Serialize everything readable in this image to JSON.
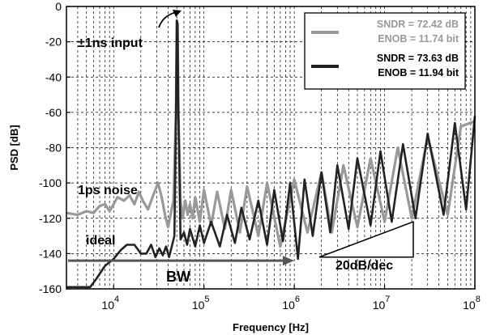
{
  "chart_data": {
    "type": "line",
    "xlabel": "Frequency [Hz]",
    "ylabel": "PSD [dB]",
    "xscale": "log",
    "xlim": [
      3000,
      100000000
    ],
    "ylim": [
      -160,
      0
    ],
    "grid": true,
    "legend_position": "top-right",
    "x_ticks": [
      {
        "value": 10000,
        "base": "10",
        "exp": "4"
      },
      {
        "value": 100000,
        "base": "10",
        "exp": "5"
      },
      {
        "value": 1000000,
        "base": "10",
        "exp": "6"
      },
      {
        "value": 10000000,
        "base": "10",
        "exp": "7"
      },
      {
        "value": 100000000,
        "base": "10",
        "exp": "8"
      }
    ],
    "y_ticks": [
      "0",
      "-20",
      "-40",
      "-60",
      "-80",
      "-100",
      "-120",
      "-140",
      "-160"
    ],
    "series": [
      {
        "name": "SNDR = 72.42 dB ENOB = 11.74 bit",
        "color": "#999999",
        "legend_lines": [
          "SNDR = 72.42 dB",
          "ENOB = 11.74 bit"
        ],
        "points": [
          [
            3000,
            -117
          ],
          [
            4000,
            -118
          ],
          [
            5000,
            -116
          ],
          [
            6000,
            -117
          ],
          [
            7000,
            -113
          ],
          [
            8000,
            -112
          ],
          [
            9000,
            -116
          ],
          [
            10000,
            -112
          ],
          [
            11000,
            -108
          ],
          [
            13000,
            -110
          ],
          [
            15000,
            -107
          ],
          [
            17000,
            -112
          ],
          [
            19000,
            -105
          ],
          [
            21000,
            -110
          ],
          [
            24000,
            -115
          ],
          [
            27000,
            -108
          ],
          [
            31000,
            -100
          ],
          [
            34000,
            -108
          ],
          [
            37000,
            -118
          ],
          [
            40000,
            -125
          ],
          [
            43000,
            -117
          ],
          [
            46000,
            -110
          ],
          [
            49000,
            -60
          ],
          [
            50000,
            -8
          ],
          [
            51000,
            -10
          ],
          [
            52000,
            -60
          ],
          [
            55000,
            -110
          ],
          [
            58000,
            -120
          ],
          [
            62000,
            -110
          ],
          [
            66000,
            -118
          ],
          [
            70000,
            -112
          ],
          [
            75000,
            -120
          ],
          [
            80000,
            -108
          ],
          [
            90000,
            -122
          ],
          [
            100000,
            -104
          ],
          [
            120000,
            -124
          ],
          [
            140000,
            -105
          ],
          [
            170000,
            -126
          ],
          [
            200000,
            -104
          ],
          [
            250000,
            -128
          ],
          [
            300000,
            -102
          ],
          [
            400000,
            -130
          ],
          [
            500000,
            -100
          ],
          [
            700000,
            -136
          ],
          [
            1000000,
            -98
          ],
          [
            1400000,
            -128
          ],
          [
            2000000,
            -94
          ],
          [
            2600000,
            -128
          ],
          [
            3500000,
            -90
          ],
          [
            5000000,
            -125
          ],
          [
            7000000,
            -86
          ],
          [
            10000000,
            -122
          ],
          [
            14000000,
            -80
          ],
          [
            20000000,
            -120
          ],
          [
            30000000,
            -74
          ],
          [
            50000000,
            -118
          ],
          [
            70000000,
            -68
          ],
          [
            100000000,
            -65
          ]
        ]
      },
      {
        "name": "SNDR = 73.63 dB ENOB = 11.94 bit",
        "color": "#222222",
        "legend_lines": [
          "SNDR = 73.63 dB",
          "ENOB = 11.94 bit"
        ],
        "points": [
          [
            3000,
            -159
          ],
          [
            5500,
            -159
          ],
          [
            6500,
            -154
          ],
          [
            8000,
            -147
          ],
          [
            10000,
            -143
          ],
          [
            12000,
            -138
          ],
          [
            14000,
            -135
          ],
          [
            17000,
            -135
          ],
          [
            20000,
            -140
          ],
          [
            23000,
            -140
          ],
          [
            26000,
            -135
          ],
          [
            29000,
            -142
          ],
          [
            32000,
            -137
          ],
          [
            35000,
            -141
          ],
          [
            38000,
            -136
          ],
          [
            41000,
            -142
          ],
          [
            44000,
            -136
          ],
          [
            47000,
            -130
          ],
          [
            49000,
            -60
          ],
          [
            50000,
            -8
          ],
          [
            51000,
            -10
          ],
          [
            52000,
            -60
          ],
          [
            55000,
            -132
          ],
          [
            60000,
            -128
          ],
          [
            65000,
            -135
          ],
          [
            70000,
            -126
          ],
          [
            80000,
            -136
          ],
          [
            90000,
            -124
          ],
          [
            100000,
            -134
          ],
          [
            120000,
            -122
          ],
          [
            150000,
            -136
          ],
          [
            180000,
            -118
          ],
          [
            220000,
            -134
          ],
          [
            260000,
            -114
          ],
          [
            320000,
            -132
          ],
          [
            400000,
            -110
          ],
          [
            500000,
            -135
          ],
          [
            600000,
            -104
          ],
          [
            750000,
            -133
          ],
          [
            900000,
            -100
          ],
          [
            1100000,
            -143
          ],
          [
            1300000,
            -98
          ],
          [
            1600000,
            -130
          ],
          [
            2000000,
            -94
          ],
          [
            2500000,
            -128
          ],
          [
            3000000,
            -90
          ],
          [
            4000000,
            -126
          ],
          [
            5000000,
            -86
          ],
          [
            7000000,
            -124
          ],
          [
            9000000,
            -82
          ],
          [
            12000000,
            -122
          ],
          [
            16000000,
            -78
          ],
          [
            22000000,
            -120
          ],
          [
            30000000,
            -72
          ],
          [
            45000000,
            -118
          ],
          [
            60000000,
            -66
          ],
          [
            80000000,
            -115
          ],
          [
            100000000,
            -62
          ]
        ]
      }
    ],
    "annotations": [
      {
        "id": "input",
        "text": "±1ns input"
      },
      {
        "id": "noise",
        "text": "1ps noise"
      },
      {
        "id": "ideal",
        "text": "ideal"
      },
      {
        "id": "bw",
        "text": "BW"
      },
      {
        "id": "slope",
        "text": "20dB/dec"
      }
    ]
  }
}
